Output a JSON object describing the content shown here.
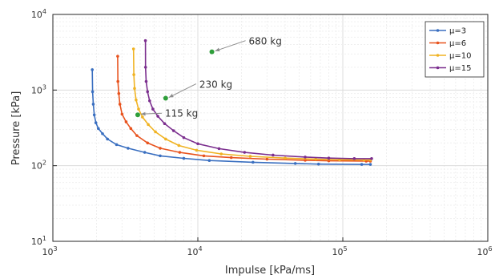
{
  "chart_data": {
    "type": "scatter",
    "title": "",
    "xlabel": "Impulse [kPa/ms]",
    "ylabel": "Pressure [kPa]",
    "x_scale": "log",
    "y_scale": "log",
    "xlim": [
      1000,
      1000000
    ],
    "ylim": [
      10,
      10000
    ],
    "x_ticks": [
      {
        "value": 1000,
        "base": "10",
        "exp": "3"
      },
      {
        "value": 10000,
        "base": "10",
        "exp": "4"
      },
      {
        "value": 100000,
        "base": "10",
        "exp": "5"
      },
      {
        "value": 1000000,
        "base": "10",
        "exp": "6"
      }
    ],
    "y_ticks": [
      {
        "value": 10,
        "base": "10",
        "exp": "1"
      },
      {
        "value": 100,
        "base": "10",
        "exp": "2"
      },
      {
        "value": 1000,
        "base": "10",
        "exp": "3"
      },
      {
        "value": 10000,
        "base": "10",
        "exp": "4"
      }
    ],
    "grid": true,
    "minor_grid": true,
    "legend_position": "top-right",
    "series": [
      {
        "name": "μ=3",
        "color": "#3a6fc0",
        "points": [
          [
            1870,
            1860
          ],
          [
            1880,
            950
          ],
          [
            1900,
            650
          ],
          [
            1930,
            470
          ],
          [
            1980,
            370
          ],
          [
            2060,
            310
          ],
          [
            2200,
            265
          ],
          [
            2380,
            225
          ],
          [
            2750,
            190
          ],
          [
            3300,
            170
          ],
          [
            4300,
            150
          ],
          [
            5500,
            135
          ],
          [
            8000,
            125
          ],
          [
            12000,
            117
          ],
          [
            24000,
            111
          ],
          [
            47000,
            107
          ],
          [
            68000,
            105
          ],
          [
            135000,
            104
          ],
          [
            155000,
            104
          ]
        ]
      },
      {
        "name": "μ=6",
        "color": "#e8531e",
        "points": [
          [
            2800,
            2800
          ],
          [
            2810,
            1300
          ],
          [
            2850,
            900
          ],
          [
            2900,
            650
          ],
          [
            3000,
            480
          ],
          [
            3200,
            380
          ],
          [
            3450,
            310
          ],
          [
            3800,
            250
          ],
          [
            4500,
            200
          ],
          [
            5500,
            170
          ],
          [
            7500,
            150
          ],
          [
            11000,
            135
          ],
          [
            17000,
            128
          ],
          [
            30000,
            122
          ],
          [
            55000,
            118
          ],
          [
            80000,
            116
          ],
          [
            145000,
            115
          ],
          [
            155000,
            115
          ]
        ]
      },
      {
        "name": "μ=10",
        "color": "#f0b323",
        "points": [
          [
            3600,
            3500
          ],
          [
            3620,
            1600
          ],
          [
            3660,
            1050
          ],
          [
            3750,
            740
          ],
          [
            3900,
            560
          ],
          [
            4150,
            440
          ],
          [
            4550,
            350
          ],
          [
            5100,
            280
          ],
          [
            6000,
            225
          ],
          [
            7400,
            185
          ],
          [
            9800,
            160
          ],
          [
            14500,
            143
          ],
          [
            23000,
            133
          ],
          [
            40000,
            126
          ],
          [
            65000,
            122
          ],
          [
            95000,
            120
          ],
          [
            140000,
            119
          ],
          [
            155000,
            119
          ]
        ]
      },
      {
        "name": "μ=15",
        "color": "#7b2e8e",
        "points": [
          [
            4350,
            4500
          ],
          [
            4360,
            2000
          ],
          [
            4400,
            1300
          ],
          [
            4500,
            950
          ],
          [
            4650,
            720
          ],
          [
            4900,
            560
          ],
          [
            5300,
            450
          ],
          [
            5900,
            360
          ],
          [
            6800,
            290
          ],
          [
            8000,
            235
          ],
          [
            10000,
            195
          ],
          [
            14000,
            168
          ],
          [
            21000,
            150
          ],
          [
            33000,
            138
          ],
          [
            55000,
            130
          ],
          [
            80000,
            126
          ],
          [
            120000,
            124
          ],
          [
            158000,
            124
          ]
        ]
      }
    ],
    "annotations": [
      {
        "label": "680 kg",
        "x": 12500,
        "y": 3200,
        "color": "#2e9e3a"
      },
      {
        "label": "230 kg",
        "x": 6000,
        "y": 780,
        "color": "#2e9e3a"
      },
      {
        "label": "115 kg",
        "x": 3850,
        "y": 470,
        "color": "#2e9e3a"
      }
    ]
  }
}
